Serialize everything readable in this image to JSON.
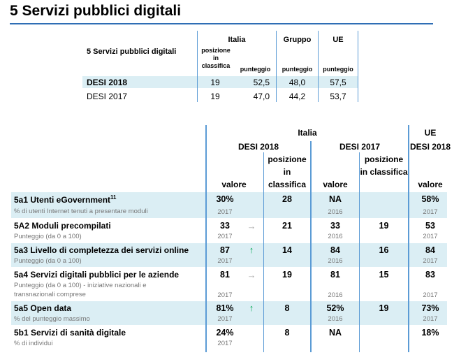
{
  "title": "5 Servizi pubblici digitali",
  "summary_table": {
    "row_label": "5 Servizi pubblici digitali",
    "group_italia": "Italia",
    "group_gruppo": "Gruppo",
    "group_ue": "UE",
    "sub_posizione": "posizione in classifica",
    "sub_punteggio": "punteggio",
    "rows": [
      {
        "label": "DESI 2018",
        "posizione": "19",
        "punteggio_it": "52,5",
        "punteggio_gruppo": "48,0",
        "punteggio_ue": "57,5"
      },
      {
        "label": "DESI 2017",
        "posizione": "19",
        "punteggio_it": "47,0",
        "punteggio_gruppo": "44,2",
        "punteggio_ue": "53,7"
      }
    ]
  },
  "detail_table": {
    "header_italia": "Italia",
    "header_ue": "UE",
    "header_desi2018": "DESI 2018",
    "header_desi2017": "DESI 2017",
    "header_ue_desi2018": "DESI 2018",
    "col_valore": "valore",
    "col_posizione": "posizione in classifica",
    "indicators": [
      {
        "name": "5a1 Utenti eGovernment",
        "sup": "11",
        "desc": "% di utenti Internet tenuti a presentare moduli",
        "desc2": "",
        "v2018": "30%",
        "y2018": "2017",
        "arrow": "",
        "pos2018": "28",
        "v2017": "NA",
        "y2017": "2016",
        "pos2017": "",
        "vue": "58%",
        "yue": "2017"
      },
      {
        "name": "5A2 Moduli precompilati",
        "sup": "",
        "desc": "Punteggio (da 0 a 100)",
        "desc2": "",
        "v2018": "33",
        "y2018": "2017",
        "arrow": "→",
        "pos2018": "21",
        "v2017": "33",
        "y2017": "2016",
        "pos2017": "19",
        "vue": "53",
        "yue": "2017"
      },
      {
        "name": "5a3 Livello di completezza dei servizi online",
        "sup": "",
        "desc": "Punteggio (da 0 a 100)",
        "desc2": "",
        "v2018": "87",
        "y2018": "2017",
        "arrow": "↑",
        "pos2018": "14",
        "v2017": "84",
        "y2017": "2016",
        "pos2017": "16",
        "vue": "84",
        "yue": "2017"
      },
      {
        "name": "5a4 Servizi digitali pubblici per le aziende",
        "sup": "",
        "desc": "Punteggio (da 0 a 100) - iniziative nazionali e",
        "desc2": "transnazionali comprese",
        "v2018": "81",
        "y2018": "2017",
        "arrow": "→",
        "pos2018": "19",
        "v2017": "81",
        "y2017": "2016",
        "pos2017": "15",
        "vue": "83",
        "yue": "2017"
      },
      {
        "name": "5a5 Open data",
        "sup": "",
        "desc": "% del punteggio massimo",
        "desc2": "",
        "v2018": "81%",
        "y2018": "2017",
        "arrow": "↑",
        "pos2018": "8",
        "v2017": "52%",
        "y2017": "2016",
        "pos2017": "19",
        "vue": "73%",
        "yue": "2017"
      },
      {
        "name": "5b1 Servizi di sanità digitale",
        "sup": "",
        "desc": "% di individui",
        "desc2": "",
        "v2018": "24%",
        "y2018": "2017",
        "arrow": "",
        "pos2018": "8",
        "v2017": "NA",
        "y2017": "",
        "pos2017": "",
        "vue": "18%",
        "yue": ""
      }
    ]
  },
  "colors": {
    "accent": "#2f6eb5",
    "band": "#dbeef4",
    "rule": "#5b9bd5",
    "arrow_up": "#00a651",
    "arrow_neutral": "#a6a6a6"
  }
}
